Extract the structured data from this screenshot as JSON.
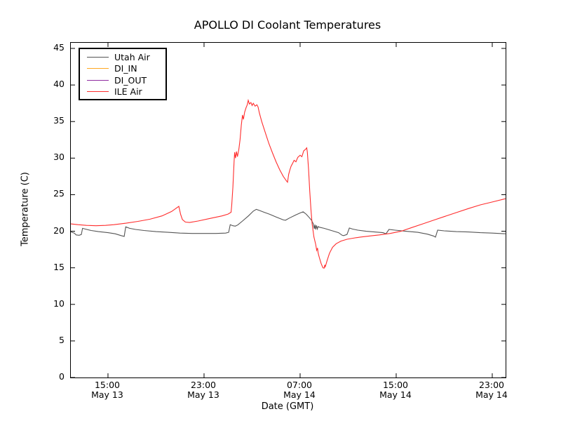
{
  "chart_data": {
    "type": "line",
    "title": "APOLLO DI Coolant Temperatures",
    "xlabel": "Date (GMT)",
    "ylabel": "Temperature (C)",
    "x_unit": "hours since May 13 12:00 GMT",
    "xlim": [
      -0.09,
      36.11
    ],
    "ylim": [
      0,
      45.77
    ],
    "grid": false,
    "legend_position": "upper-left",
    "yticks": [
      0,
      5,
      10,
      15,
      20,
      25,
      30,
      35,
      40,
      45
    ],
    "xticks": [
      {
        "h": 3,
        "time": "15:00",
        "date": "May 13"
      },
      {
        "h": 11,
        "time": "23:00",
        "date": "May 13"
      },
      {
        "h": 19,
        "time": "07:00",
        "date": "May 14"
      },
      {
        "h": 27,
        "time": "15:00",
        "date": "May 14"
      },
      {
        "h": 35,
        "time": "23:00",
        "date": "May 14"
      }
    ],
    "series": [
      {
        "name": "Utah Air",
        "color": "#555555",
        "points": [
          [
            -0.09,
            19.9
          ],
          [
            0.2,
            19.75
          ],
          [
            0.35,
            19.5
          ],
          [
            0.6,
            19.45
          ],
          [
            0.78,
            19.55
          ],
          [
            0.88,
            20.4
          ],
          [
            1.1,
            20.3
          ],
          [
            1.6,
            20.1
          ],
          [
            2.2,
            19.95
          ],
          [
            3.0,
            19.8
          ],
          [
            3.6,
            19.65
          ],
          [
            4.1,
            19.4
          ],
          [
            4.35,
            19.3
          ],
          [
            4.48,
            20.6
          ],
          [
            4.8,
            20.4
          ],
          [
            5.3,
            20.25
          ],
          [
            6.0,
            20.1
          ],
          [
            7.0,
            19.95
          ],
          [
            8.0,
            19.85
          ],
          [
            9.0,
            19.75
          ],
          [
            10.0,
            19.7
          ],
          [
            11.0,
            19.7
          ],
          [
            12.0,
            19.7
          ],
          [
            12.8,
            19.75
          ],
          [
            13.05,
            19.85
          ],
          [
            13.18,
            20.9
          ],
          [
            13.4,
            20.75
          ],
          [
            13.6,
            20.7
          ],
          [
            13.8,
            20.85
          ],
          [
            14.2,
            21.4
          ],
          [
            14.7,
            22.1
          ],
          [
            15.1,
            22.75
          ],
          [
            15.35,
            23.0
          ],
          [
            15.6,
            22.85
          ],
          [
            16.0,
            22.6
          ],
          [
            16.5,
            22.3
          ],
          [
            17.0,
            21.95
          ],
          [
            17.6,
            21.55
          ],
          [
            17.78,
            21.5
          ],
          [
            18.1,
            21.8
          ],
          [
            18.6,
            22.2
          ],
          [
            19.0,
            22.5
          ],
          [
            19.25,
            22.65
          ],
          [
            19.5,
            22.35
          ],
          [
            19.75,
            21.9
          ],
          [
            19.95,
            21.5
          ],
          [
            20.1,
            21.0
          ],
          [
            20.18,
            20.35
          ],
          [
            20.24,
            20.9
          ],
          [
            20.3,
            20.25
          ],
          [
            20.36,
            20.8
          ],
          [
            20.43,
            20.3
          ],
          [
            20.5,
            20.65
          ],
          [
            20.6,
            20.55
          ],
          [
            21.0,
            20.4
          ],
          [
            21.6,
            20.1
          ],
          [
            22.2,
            19.8
          ],
          [
            22.5,
            19.45
          ],
          [
            22.62,
            19.4
          ],
          [
            22.9,
            19.55
          ],
          [
            23.1,
            20.45
          ],
          [
            23.35,
            20.3
          ],
          [
            23.8,
            20.15
          ],
          [
            24.5,
            20.0
          ],
          [
            25.2,
            19.9
          ],
          [
            25.9,
            19.8
          ],
          [
            26.15,
            19.65
          ],
          [
            26.4,
            20.25
          ],
          [
            26.9,
            20.15
          ],
          [
            27.8,
            20.0
          ],
          [
            28.8,
            19.85
          ],
          [
            29.6,
            19.6
          ],
          [
            30.1,
            19.35
          ],
          [
            30.27,
            19.2
          ],
          [
            30.45,
            20.15
          ],
          [
            31.0,
            20.05
          ],
          [
            32.0,
            19.95
          ],
          [
            33.0,
            19.9
          ],
          [
            34.0,
            19.8
          ],
          [
            35.0,
            19.75
          ],
          [
            36.1,
            19.65
          ]
        ]
      },
      {
        "name": "DI_IN",
        "color": "#ffa820",
        "points": []
      },
      {
        "name": "DI_OUT",
        "color": "#8f2ca0",
        "points": []
      },
      {
        "name": "ILE Air",
        "color": "#ff2d2d",
        "points": [
          [
            -0.09,
            21.0
          ],
          [
            0.5,
            20.9
          ],
          [
            1.2,
            20.8
          ],
          [
            2.0,
            20.75
          ],
          [
            2.8,
            20.8
          ],
          [
            3.5,
            20.9
          ],
          [
            4.5,
            21.1
          ],
          [
            5.5,
            21.35
          ],
          [
            6.5,
            21.65
          ],
          [
            7.5,
            22.1
          ],
          [
            8.3,
            22.7
          ],
          [
            8.9,
            23.4
          ],
          [
            9.05,
            22.3
          ],
          [
            9.2,
            21.6
          ],
          [
            9.45,
            21.25
          ],
          [
            9.8,
            21.2
          ],
          [
            10.5,
            21.4
          ],
          [
            11.5,
            21.75
          ],
          [
            12.5,
            22.1
          ],
          [
            13.0,
            22.35
          ],
          [
            13.25,
            22.6
          ],
          [
            13.3,
            23.5
          ],
          [
            13.4,
            26.0
          ],
          [
            13.5,
            29.5
          ],
          [
            13.55,
            30.8
          ],
          [
            13.62,
            30.0
          ],
          [
            13.7,
            30.9
          ],
          [
            13.78,
            30.2
          ],
          [
            13.9,
            31.2
          ],
          [
            14.0,
            32.5
          ],
          [
            14.1,
            34.5
          ],
          [
            14.2,
            35.9
          ],
          [
            14.28,
            35.3
          ],
          [
            14.38,
            36.3
          ],
          [
            14.5,
            36.9
          ],
          [
            14.6,
            37.3
          ],
          [
            14.68,
            37.9
          ],
          [
            14.78,
            37.4
          ],
          [
            14.9,
            37.6
          ],
          [
            15.0,
            37.2
          ],
          [
            15.1,
            37.5
          ],
          [
            15.25,
            37.1
          ],
          [
            15.4,
            37.3
          ],
          [
            15.5,
            37.0
          ],
          [
            15.6,
            36.2
          ],
          [
            15.8,
            35.0
          ],
          [
            16.1,
            33.5
          ],
          [
            16.4,
            32.0
          ],
          [
            16.7,
            30.7
          ],
          [
            17.0,
            29.5
          ],
          [
            17.3,
            28.4
          ],
          [
            17.6,
            27.5
          ],
          [
            17.85,
            26.9
          ],
          [
            17.95,
            26.7
          ],
          [
            18.05,
            27.8
          ],
          [
            18.15,
            28.4
          ],
          [
            18.25,
            28.9
          ],
          [
            18.35,
            29.2
          ],
          [
            18.5,
            29.7
          ],
          [
            18.65,
            29.5
          ],
          [
            18.8,
            30.1
          ],
          [
            19.0,
            30.4
          ],
          [
            19.15,
            30.2
          ],
          [
            19.3,
            31.0
          ],
          [
            19.45,
            31.2
          ],
          [
            19.55,
            31.4
          ],
          [
            19.6,
            30.8
          ],
          [
            19.7,
            28.5
          ],
          [
            19.8,
            25.5
          ],
          [
            19.9,
            23.0
          ],
          [
            20.0,
            21.0
          ],
          [
            20.15,
            19.2
          ],
          [
            20.3,
            18.2
          ],
          [
            20.38,
            17.4
          ],
          [
            20.45,
            17.7
          ],
          [
            20.5,
            17.0
          ],
          [
            20.6,
            16.4
          ],
          [
            20.75,
            15.6
          ],
          [
            20.9,
            15.0
          ],
          [
            21.0,
            14.95
          ],
          [
            21.05,
            15.4
          ],
          [
            21.1,
            15.15
          ],
          [
            21.25,
            16.0
          ],
          [
            21.45,
            17.0
          ],
          [
            21.7,
            17.8
          ],
          [
            22.0,
            18.3
          ],
          [
            22.4,
            18.65
          ],
          [
            22.9,
            18.9
          ],
          [
            23.4,
            19.05
          ],
          [
            24.0,
            19.2
          ],
          [
            24.8,
            19.35
          ],
          [
            25.6,
            19.5
          ],
          [
            26.5,
            19.7
          ],
          [
            27.4,
            20.0
          ],
          [
            28.3,
            20.5
          ],
          [
            29.2,
            21.0
          ],
          [
            30.1,
            21.5
          ],
          [
            31.0,
            22.0
          ],
          [
            32.0,
            22.55
          ],
          [
            33.0,
            23.1
          ],
          [
            34.0,
            23.6
          ],
          [
            35.0,
            24.0
          ],
          [
            36.1,
            24.45
          ]
        ]
      }
    ],
    "colors": {
      "spine": "#000000",
      "background": "#ffffff"
    }
  }
}
